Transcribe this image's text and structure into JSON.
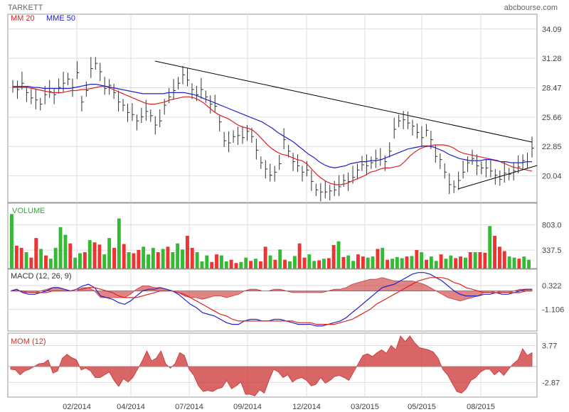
{
  "header": {
    "title": "TARKETT",
    "source": "abcbourse.com"
  },
  "colors": {
    "price": "#333333",
    "mm20": "#dd2222",
    "mme50": "#2222cc",
    "vol_up": "#33bb33",
    "vol_down": "#ee3333",
    "area": "#cc3333",
    "grid": "#dddddd",
    "trend": "#000000"
  },
  "x_labels": [
    "02/2014",
    "04/2014",
    "07/2014",
    "09/2014",
    "12/2014",
    "03/2015",
    "05/2015",
    "08/2015"
  ],
  "chart_data": [
    {
      "type": "line",
      "name": "price",
      "legend": [
        {
          "label": "MM 20",
          "color": "#dd2222"
        },
        {
          "label": "MME 50",
          "color": "#2222cc"
        }
      ],
      "y_ticks": [
        "34.09",
        "31.28",
        "28.47",
        "25.66",
        "22.85",
        "20.04"
      ],
      "ylim": [
        17.5,
        35.5
      ],
      "price": [
        28.6,
        28.3,
        28.9,
        28.0,
        27.5,
        27.3,
        26.9,
        27.8,
        28.1,
        27.8,
        28.5,
        28.9,
        29.3,
        28.5,
        29.9,
        27.1,
        28.2,
        30.3,
        30.8,
        30.0,
        28.4,
        28.7,
        28.0,
        27.1,
        26.8,
        26.1,
        25.9,
        25.3,
        25.7,
        26.2,
        25.8,
        24.9,
        25.3,
        26.8,
        27.6,
        28.2,
        28.9,
        29.7,
        29.2,
        28.3,
        27.8,
        28.3,
        27.6,
        26.9,
        26.7,
        25.2,
        23.4,
        23.2,
        23.8,
        23.9,
        23.7,
        24.3,
        23.8,
        22.5,
        21.3,
        20.7,
        20.1,
        20.4,
        21.2,
        23.5,
        22.4,
        21.4,
        21.0,
        20.4,
        20.6,
        19.5,
        18.7,
        18.5,
        18.5,
        18.6,
        18.7,
        19.0,
        19.6,
        19.5,
        19.9,
        20.6,
        21.1,
        21.0,
        21.3,
        21.7,
        21.6,
        21.4,
        22.4,
        24.5,
        25.3,
        25.4,
        25.1,
        24.8,
        24.2,
        23.7,
        24.4,
        23.5,
        21.9,
        21.6,
        20.4,
        19.2,
        19.0,
        19.6,
        20.4,
        21.3,
        21.7,
        21.0,
        20.8,
        20.8,
        20.5,
        20.1,
        19.7,
        20.3,
        20.2,
        20.5,
        20.9,
        21.5,
        21.4,
        22.7
      ],
      "mm20": [
        28.5,
        28.5,
        28.5,
        28.5,
        28.4,
        28.3,
        28.2,
        28.1,
        28.0,
        28.0,
        28.0,
        28.1,
        28.2,
        28.2,
        28.3,
        28.3,
        28.4,
        28.5,
        28.6,
        28.6,
        28.4,
        28.2,
        28.0,
        27.8,
        27.6,
        27.4,
        27.2,
        27.0,
        26.9,
        26.9,
        27.0,
        27.1,
        27.3,
        27.4,
        27.5,
        27.6,
        27.6,
        27.5,
        27.3,
        27.0,
        26.6,
        26.2,
        25.9,
        25.7,
        25.5,
        25.2,
        24.9,
        24.7,
        24.6,
        24.4,
        24.0,
        23.5,
        23.0,
        22.6,
        22.3,
        22.1,
        22.0,
        21.8,
        21.6,
        21.5,
        21.2,
        20.7,
        20.2,
        19.8,
        19.5,
        19.3,
        19.2,
        19.2,
        19.3,
        19.5,
        19.7,
        19.9,
        20.1,
        20.4,
        20.5,
        20.7,
        20.8,
        20.8,
        20.9,
        21.0,
        21.4,
        21.9,
        22.3,
        22.6,
        22.8,
        22.9,
        23.0,
        23.0,
        23.0,
        22.9,
        22.7,
        22.4,
        22.2,
        22.1,
        22.0,
        21.9,
        21.8,
        21.7,
        21.6,
        21.5,
        21.3,
        21.1,
        20.9,
        20.8,
        20.7,
        20.6,
        20.5
      ],
      "mme50": [
        28.6,
        28.6,
        28.6,
        28.6,
        28.5,
        28.5,
        28.4,
        28.4,
        28.4,
        28.4,
        28.4,
        28.4,
        28.5,
        28.6,
        28.7,
        28.8,
        28.8,
        28.7,
        28.6,
        28.5,
        28.4,
        28.3,
        28.2,
        28.1,
        28.0,
        27.9,
        27.9,
        27.9,
        27.9,
        27.9,
        28.0,
        28.0,
        28.0,
        28.0,
        27.9,
        27.8,
        27.6,
        27.4,
        27.2,
        27.0,
        26.8,
        26.6,
        26.4,
        26.2,
        26.0,
        25.8,
        25.6,
        25.4,
        25.2,
        24.9,
        24.6,
        24.2,
        23.9,
        23.6,
        23.3,
        22.9,
        22.5,
        22.1,
        21.8,
        21.4,
        21.1,
        20.9,
        20.8,
        20.9,
        21.0,
        21.2,
        21.3,
        21.4,
        21.4,
        21.5,
        21.5,
        21.6,
        21.8,
        22.0,
        22.2,
        22.4,
        22.6,
        22.7,
        22.8,
        22.9,
        22.9,
        22.8,
        22.6,
        22.4,
        22.1,
        21.9,
        21.7,
        21.6,
        21.5,
        21.5,
        21.5,
        21.6,
        21.6,
        21.5,
        21.4,
        21.4,
        21.3,
        21.3,
        21.3,
        21.4,
        21.4
      ]
    },
    {
      "type": "bar",
      "name": "volume",
      "label": "VOLUME",
      "y_ticks": [
        "803.0",
        "337.5"
      ],
      "ylim": [
        0,
        1200
      ],
      "values": [
        1000,
        420,
        380,
        300,
        200,
        560,
        360,
        240,
        180,
        380,
        760,
        620,
        460,
        200,
        280,
        300,
        520,
        480,
        440,
        260,
        560,
        380,
        920,
        450,
        300,
        280,
        340,
        400,
        260,
        380,
        300,
        360,
        400,
        300,
        460,
        350,
        600,
        380,
        300,
        130,
        240,
        120,
        260,
        240,
        130,
        160,
        100,
        120,
        200,
        140,
        180,
        130,
        400,
        240,
        160,
        350,
        160,
        130,
        230,
        460,
        200,
        260,
        140,
        150,
        180,
        190,
        430,
        500,
        210,
        240,
        140,
        260,
        220,
        200,
        220,
        360,
        380,
        160,
        180,
        210,
        190,
        220,
        230,
        340,
        300,
        160,
        220,
        140,
        260,
        180,
        240,
        190,
        220,
        200,
        300,
        300,
        300,
        290,
        780,
        600,
        400,
        320,
        220,
        200,
        180,
        220,
        160
      ],
      "up": [
        1,
        0,
        0,
        1,
        0,
        0,
        1,
        0,
        1,
        1,
        1,
        1,
        0,
        1,
        1,
        0,
        1,
        0,
        0,
        1,
        1,
        0,
        1,
        0,
        1,
        0,
        0,
        1,
        1,
        1,
        0,
        1,
        0,
        1,
        1,
        1,
        0,
        0,
        1,
        1,
        1,
        0,
        0,
        1,
        1,
        0,
        0,
        1,
        1,
        0,
        1,
        0,
        0,
        1,
        0,
        1,
        0,
        1,
        1,
        0,
        0,
        1,
        1,
        0,
        1,
        0,
        0,
        1,
        0,
        1,
        1,
        0,
        0,
        1,
        1,
        0,
        1,
        0,
        1,
        1,
        1,
        0,
        1,
        0,
        1,
        0,
        1,
        1,
        0,
        1,
        1,
        0,
        0,
        1,
        0,
        1,
        0,
        0,
        1,
        0,
        0,
        0,
        1,
        1,
        0,
        1,
        1
      ]
    },
    {
      "type": "line",
      "name": "macd",
      "label": "MACD (12, 26, 9)",
      "y_ticks": [
        "0.322",
        "-1.106"
      ],
      "ylim": [
        -2.4,
        1.3
      ],
      "macd": [
        0.0,
        0.1,
        -0.1,
        -0.2,
        -0.2,
        -0.1,
        0.0,
        0.2,
        0.2,
        0.1,
        0.0,
        0.1,
        0.3,
        0.4,
        0.2,
        -0.3,
        -0.4,
        -0.5,
        -0.7,
        -0.8,
        -0.6,
        -0.3,
        0.0,
        0.1,
        0.1,
        0.2,
        0.1,
        0.0,
        -0.2,
        -0.5,
        -0.8,
        -1.0,
        -1.3,
        -1.4,
        -1.5,
        -1.7,
        -1.9,
        -2.0,
        -2.0,
        -1.8,
        -1.7,
        -1.7,
        -1.8,
        -1.8,
        -1.7,
        -1.7,
        -1.8,
        -1.9,
        -2.0,
        -2.0,
        -2.0,
        -2.1,
        -2.1,
        -2.0,
        -1.9,
        -1.8,
        -1.6,
        -1.3,
        -1.0,
        -0.7,
        -0.4,
        -0.1,
        0.2,
        0.3,
        0.4,
        0.6,
        0.8,
        1.0,
        1.1,
        1.1,
        1.0,
        0.8,
        0.6,
        0.3,
        0.0,
        -0.2,
        -0.3,
        -0.3,
        -0.3,
        -0.2,
        -0.2,
        -0.1,
        -0.2,
        -0.2,
        -0.1,
        0.0,
        0.1,
        0.1
      ],
      "signal": [
        0.0,
        0.0,
        0.0,
        -0.1,
        -0.1,
        -0.1,
        -0.1,
        0.0,
        0.0,
        0.0,
        0.0,
        0.1,
        0.1,
        0.2,
        0.2,
        0.1,
        0.0,
        -0.1,
        -0.3,
        -0.4,
        -0.4,
        -0.4,
        -0.3,
        -0.2,
        -0.1,
        0.0,
        0.0,
        0.0,
        -0.1,
        -0.2,
        -0.4,
        -0.6,
        -0.8,
        -1.0,
        -1.2,
        -1.4,
        -1.5,
        -1.7,
        -1.8,
        -1.8,
        -1.8,
        -1.8,
        -1.8,
        -1.8,
        -1.8,
        -1.8,
        -1.8,
        -1.8,
        -1.9,
        -1.9,
        -1.9,
        -2.0,
        -2.0,
        -2.0,
        -2.0,
        -1.9,
        -1.8,
        -1.7,
        -1.5,
        -1.3,
        -1.1,
        -0.8,
        -0.6,
        -0.4,
        -0.2,
        0.0,
        0.2,
        0.4,
        0.6,
        0.7,
        0.8,
        0.8,
        0.8,
        0.7,
        0.5,
        0.4,
        0.2,
        0.1,
        0.0,
        -0.1,
        -0.1,
        -0.1,
        -0.1,
        -0.1,
        -0.1,
        -0.1,
        0.0,
        0.0
      ]
    },
    {
      "type": "area",
      "name": "momentum",
      "label": "MOM (12)",
      "y_ticks": [
        "3.77",
        "-2.87"
      ],
      "ylim": [
        -5.5,
        6.0
      ],
      "values": [
        -0.5,
        -0.6,
        -1.5,
        -0.8,
        -0.5,
        0.0,
        0.5,
        0.6,
        1.2,
        -1.2,
        -0.8,
        1.5,
        2.2,
        1.6,
        1.2,
        -0.6,
        -0.3,
        -0.8,
        -2.0,
        -2.0,
        -1.5,
        -1.0,
        -2.5,
        -3.6,
        -2.2,
        -2.8,
        -2.0,
        -0.5,
        1.0,
        2.8,
        1.0,
        1.5,
        2.8,
        0.5,
        -0.3,
        0.5,
        2.5,
        2.0,
        -0.5,
        -1.6,
        -3.5,
        -4.5,
        -4.3,
        -4.5,
        -4.0,
        -3.8,
        -2.5,
        -4.0,
        -3.5,
        -2.8,
        -5.0,
        -5.0,
        -5.3,
        -4.2,
        -4.8,
        -2.5,
        -0.5,
        -1.0,
        -2.0,
        -1.5,
        -2.8,
        -2.2,
        -2.0,
        -2.5,
        -3.5,
        -3.2,
        -2.0,
        -3.0,
        -2.5,
        -1.8,
        -1.6,
        -2.0,
        -2.5,
        -1.0,
        0.5,
        2.0,
        2.3,
        1.8,
        2.5,
        3.0,
        2.4,
        3.8,
        3.0,
        5.5,
        4.5,
        5.5,
        4.3,
        3.4,
        3.2,
        3.0,
        2.6,
        1.5,
        -0.5,
        -1.5,
        -3.0,
        -4.5,
        -4.8,
        -4.0,
        -2.5,
        -2.0,
        -1.0,
        -0.5,
        -0.5,
        -1.5,
        -0.8,
        -1.6,
        -0.5,
        0.5,
        1.2,
        3.2,
        2.0,
        2.5
      ]
    }
  ]
}
